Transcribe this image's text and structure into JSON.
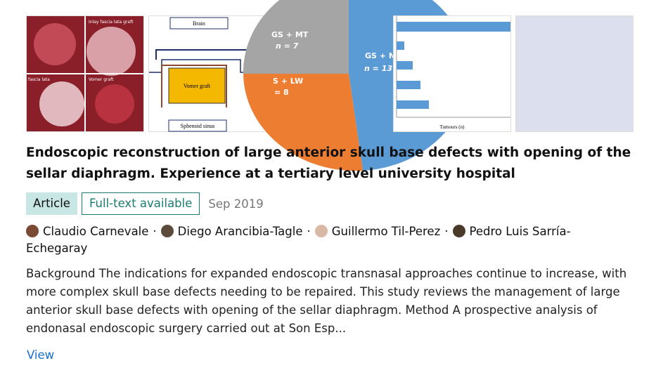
{
  "thumbnails": [
    {
      "texts": [
        "Inlay fascia lata graft",
        "fascia lata",
        "Vomer graft"
      ]
    },
    {
      "texts": [
        "Brain",
        "Vomer graft",
        "Sphenoid sinus"
      ]
    },
    {
      "texts": [
        "GS + MT",
        "n = 7",
        "GS + N",
        "n = 13",
        "S + LW",
        "= 8"
      ]
    },
    {
      "texts": [
        "Tumours (n)"
      ]
    },
    {
      "texts": []
    }
  ],
  "title": "Endoscopic reconstruction of large anterior skull base defects with opening of the sellar diaphragm. Experience at a tertiary level university hospital",
  "badges": [
    "Article",
    "Full-text available"
  ],
  "date": "Sep 2019",
  "authors": [
    "Claudio Carnevale",
    "Diego Arancibia-Tagle",
    "Guillermo Til-Perez",
    "Pedro Luis Sarría-Echegaray"
  ],
  "separator": "·",
  "abstract": "Background The indications for expanded endoscopic transnasal approaches continue to increase, with more complex skull base defects needing to be repaired. This study reviews the management of large anterior skull base defects with opening of the sellar diaphragm. Method A prospective analysis of endonasal endoscopic surgery carried out at Son Esp...",
  "link": "View"
}
